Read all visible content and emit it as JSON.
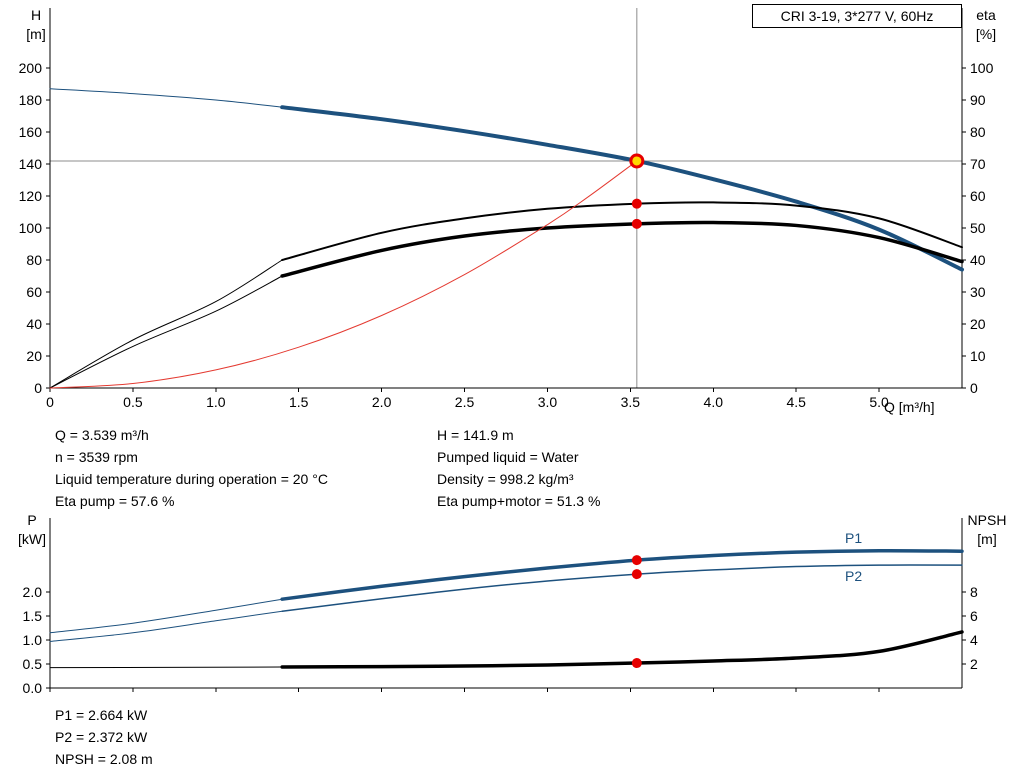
{
  "title_box": "CRI 3-19, 3*277 V, 60Hz",
  "colors": {
    "curve_blue": "#1d517e",
    "curve_black": "#000000",
    "curve_red": "#e43a31",
    "dot_red": "#e60000",
    "op_fill": "#ffd800",
    "op_stroke": "#e60000",
    "crosshair": "#8c8c8c"
  },
  "curve_labels": {
    "p1": "P1",
    "p2": "P2"
  },
  "info_left": [
    "Q = 3.539 m³/h",
    "n = 3539 rpm",
    "Liquid temperature during operation = 20 °C",
    "Eta pump = 57.6 %"
  ],
  "info_right": [
    "H = 141.9 m",
    "Pumped liquid = Water",
    "Density = 998.2 kg/m³",
    "Eta pump+motor = 51.3 %"
  ],
  "info_bottom": [
    "P1 = 2.664 kW",
    "P2 = 2.372 kW",
    "NPSH = 2.08 m"
  ],
  "chart_data": [
    {
      "type": "line",
      "title": "CRI 3-19, 3*277 V, 60Hz",
      "x_title": "Q [m³/h]",
      "y_left_title": [
        "H",
        "[m]"
      ],
      "y_right_title": [
        "eta",
        "[%]"
      ],
      "x_range": [
        0,
        5.5
      ],
      "y_left_range": [
        0,
        237.5
      ],
      "y_right_range": [
        0,
        118.75
      ],
      "x_ticks": [
        "0",
        "0.5",
        "1.0",
        "1.5",
        "2.0",
        "2.5",
        "3.0",
        "3.5",
        "4.0",
        "4.5",
        "5.0"
      ],
      "y_left_ticks": [
        "0",
        "20",
        "40",
        "60",
        "80",
        "100",
        "120",
        "140",
        "160",
        "180",
        "200"
      ],
      "y_right_ticks": [
        "0",
        "10",
        "20",
        "30",
        "40",
        "50",
        "60",
        "70",
        "80",
        "90",
        "100"
      ],
      "show_x_labels": true,
      "grid": false,
      "series": [
        {
          "name": "head-below-min-flow",
          "axis": "left",
          "color": "curve_blue",
          "width": 1,
          "points": [
            [
              0,
              187
            ],
            [
              0.5,
              184
            ],
            [
              1.0,
              180
            ],
            [
              1.4,
              175.5
            ]
          ]
        },
        {
          "name": "head",
          "axis": "left",
          "color": "curve_blue",
          "width": 4,
          "points": [
            [
              1.4,
              175.5
            ],
            [
              2.0,
              168
            ],
            [
              2.5,
              160.5
            ],
            [
              3.0,
              152
            ],
            [
              3.539,
              141.9
            ],
            [
              4.0,
              130.5
            ],
            [
              4.5,
              116.5
            ],
            [
              5.0,
              99
            ],
            [
              5.5,
              74
            ]
          ]
        },
        {
          "name": "eta-pump-below-min-flow",
          "axis": "right",
          "color": "curve_black",
          "width": 1,
          "points": [
            [
              0,
              0
            ],
            [
              0.5,
              15
            ],
            [
              1.0,
              27
            ],
            [
              1.4,
              40
            ]
          ]
        },
        {
          "name": "eta-pump",
          "axis": "right",
          "color": "curve_black",
          "width": 2,
          "points": [
            [
              1.4,
              40
            ],
            [
              2.0,
              48.5
            ],
            [
              2.5,
              53
            ],
            [
              3.0,
              56
            ],
            [
              3.539,
              57.6
            ],
            [
              4.0,
              58
            ],
            [
              4.5,
              57
            ],
            [
              5.0,
              53
            ],
            [
              5.5,
              44
            ]
          ]
        },
        {
          "name": "eta-pump-motor-below-min-flow",
          "axis": "right",
          "color": "curve_black",
          "width": 1,
          "points": [
            [
              0,
              0
            ],
            [
              0.5,
              13
            ],
            [
              1.0,
              24
            ],
            [
              1.4,
              35
            ]
          ]
        },
        {
          "name": "eta-pump-motor",
          "axis": "right",
          "color": "curve_black",
          "width": 3.5,
          "points": [
            [
              1.4,
              35
            ],
            [
              2.0,
              43
            ],
            [
              2.5,
              47.5
            ],
            [
              3.0,
              50
            ],
            [
              3.539,
              51.3
            ],
            [
              4.0,
              51.7
            ],
            [
              4.5,
              50.8
            ],
            [
              5.0,
              47
            ],
            [
              5.5,
              39.5
            ]
          ]
        },
        {
          "name": "system-curve",
          "axis": "left",
          "color": "curve_red",
          "width": 1,
          "points": [
            [
              0,
              0
            ],
            [
              0.5,
              2.8
            ],
            [
              1.0,
              11.3
            ],
            [
              1.5,
              25.5
            ],
            [
              2.0,
              45.3
            ],
            [
              2.5,
              70.9
            ],
            [
              3.0,
              102.1
            ],
            [
              3.25,
              119.8
            ],
            [
              3.539,
              141.9
            ]
          ]
        }
      ],
      "crosshair": {
        "x": 3.539,
        "y": 141.9
      },
      "operating_point": {
        "x": 3.539,
        "y": 141.9
      },
      "dots": [
        {
          "x": 3.539,
          "y": 57.6,
          "axis": "right"
        },
        {
          "x": 3.539,
          "y": 51.3,
          "axis": "right"
        }
      ]
    },
    {
      "type": "line",
      "x_title": "",
      "y_left_title": [
        "P",
        "[kW]"
      ],
      "y_right_title": [
        "NPSH",
        "[m]"
      ],
      "x_range": [
        0,
        5.5
      ],
      "y_left_range": [
        0,
        3.5417
      ],
      "y_right_range": [
        0,
        14.167
      ],
      "x_ticks": [
        "0",
        "0.5",
        "1.0",
        "1.5",
        "2.0",
        "2.5",
        "3.0",
        "3.5",
        "4.0",
        "4.5",
        "5.0"
      ],
      "y_left_ticks": [
        "0.0",
        "0.5",
        "1.0",
        "1.5",
        "2.0"
      ],
      "y_right_ticks": [
        "2",
        "4",
        "6",
        "8"
      ],
      "show_x_labels": false,
      "grid": false,
      "series": [
        {
          "name": "p1-below-min-flow",
          "axis": "left",
          "color": "curve_blue",
          "width": 1,
          "points": [
            [
              0,
              1.15
            ],
            [
              0.5,
              1.35
            ],
            [
              1.0,
              1.62
            ],
            [
              1.4,
              1.85
            ]
          ]
        },
        {
          "name": "p1",
          "axis": "left",
          "color": "curve_blue",
          "width": 3.5,
          "points": [
            [
              1.4,
              1.85
            ],
            [
              2.0,
              2.12
            ],
            [
              2.5,
              2.32
            ],
            [
              3.0,
              2.5
            ],
            [
              3.539,
              2.664
            ],
            [
              4.0,
              2.76
            ],
            [
              4.5,
              2.83
            ],
            [
              5.0,
              2.86
            ],
            [
              5.5,
              2.85
            ]
          ]
        },
        {
          "name": "p2-below-min-flow",
          "axis": "left",
          "color": "curve_blue",
          "width": 1,
          "points": [
            [
              0,
              0.97
            ],
            [
              0.5,
              1.15
            ],
            [
              1.0,
              1.4
            ],
            [
              1.4,
              1.6
            ]
          ]
        },
        {
          "name": "p2",
          "axis": "left",
          "color": "curve_blue",
          "width": 1.5,
          "points": [
            [
              1.4,
              1.6
            ],
            [
              2.0,
              1.86
            ],
            [
              2.5,
              2.06
            ],
            [
              3.0,
              2.23
            ],
            [
              3.539,
              2.372
            ],
            [
              4.0,
              2.46
            ],
            [
              4.5,
              2.53
            ],
            [
              5.0,
              2.56
            ],
            [
              5.5,
              2.56
            ]
          ]
        },
        {
          "name": "npsh-below-min-flow",
          "axis": "right",
          "color": "curve_black",
          "width": 1,
          "points": [
            [
              0,
              1.7
            ],
            [
              0.7,
              1.72
            ],
            [
              1.4,
              1.75
            ]
          ]
        },
        {
          "name": "npsh",
          "axis": "right",
          "color": "curve_black",
          "width": 3.5,
          "points": [
            [
              1.4,
              1.75
            ],
            [
              2.0,
              1.78
            ],
            [
              2.5,
              1.83
            ],
            [
              3.0,
              1.92
            ],
            [
              3.539,
              2.08
            ],
            [
              4.0,
              2.25
            ],
            [
              4.5,
              2.5
            ],
            [
              5.0,
              3.05
            ],
            [
              5.5,
              4.67
            ]
          ]
        }
      ],
      "crosshair": null,
      "operating_point": null,
      "dots": [
        {
          "x": 3.539,
          "y": 2.664,
          "axis": "left"
        },
        {
          "x": 3.539,
          "y": 2.372,
          "axis": "left"
        },
        {
          "x": 3.539,
          "y": 2.08,
          "axis": "right"
        }
      ]
    }
  ]
}
